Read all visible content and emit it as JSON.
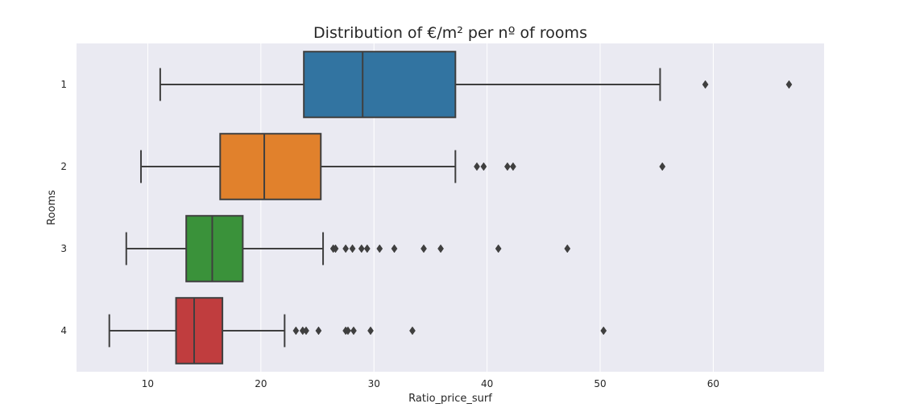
{
  "chart_data": {
    "type": "boxplot",
    "orientation": "horizontal",
    "title": "Distribution of €/m² per nº of rooms",
    "xlabel": "Ratio_price_surf",
    "ylabel": "Rooms",
    "xlim": [
      3.7,
      69.8
    ],
    "xticks": [
      10,
      20,
      30,
      40,
      50,
      60
    ],
    "grid": true,
    "background": "#EAEAF2",
    "edge_color": "#3F3F3F",
    "categories": [
      "1",
      "2",
      "3",
      "4"
    ],
    "series": [
      {
        "category": "1",
        "color": "#3274A1",
        "whisker_low": 11.1,
        "q1": 23.8,
        "median": 29.0,
        "q3": 37.2,
        "whisker_high": 55.3,
        "outliers": [
          59.3,
          66.7
        ]
      },
      {
        "category": "2",
        "color": "#E1812C",
        "whisker_low": 9.4,
        "q1": 16.4,
        "median": 20.3,
        "q3": 25.3,
        "whisker_high": 37.2,
        "outliers": [
          39.1,
          39.7,
          41.8,
          42.3,
          55.5
        ]
      },
      {
        "category": "3",
        "color": "#3A923A",
        "whisker_low": 8.1,
        "q1": 13.4,
        "median": 15.7,
        "q3": 18.4,
        "whisker_high": 25.5,
        "outliers": [
          26.4,
          26.6,
          27.5,
          28.1,
          28.9,
          29.4,
          30.5,
          31.8,
          34.4,
          35.9,
          41.0,
          47.1
        ]
      },
      {
        "category": "4",
        "color": "#C03D3E",
        "whisker_low": 6.6,
        "q1": 12.5,
        "median": 14.1,
        "q3": 16.6,
        "whisker_high": 22.1,
        "outliers": [
          23.1,
          23.7,
          24.0,
          25.1,
          27.5,
          27.7,
          28.2,
          29.7,
          33.4,
          50.3
        ]
      }
    ]
  }
}
